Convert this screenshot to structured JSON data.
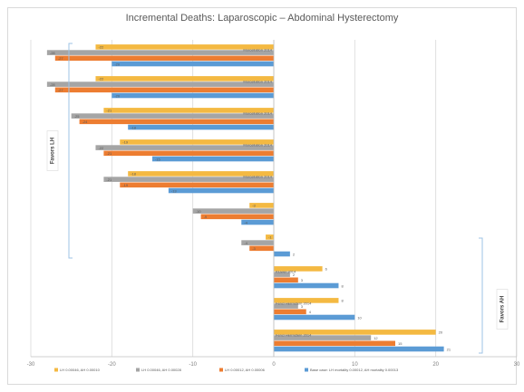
{
  "chart_data": {
    "type": "bar",
    "orientation": "horizontal",
    "title": "Incremental Deaths: Laparoscopic – Abdominal Hysterectomy",
    "xlim": [
      -30,
      30
    ],
    "xticks": [
      -30,
      -20,
      -10,
      0,
      10,
      20,
      30
    ],
    "xtick_labels": [
      "-30",
      "-20",
      "-10",
      "0",
      "10",
      "20",
      "30"
    ],
    "grid": true,
    "legend_position": "bottom",
    "categories": [
      "Morcellation 2014",
      "Morcellation 2014",
      "Morcellation 2014",
      "Morcellation 2014",
      "Morcellation 2014",
      "",
      "",
      "Kluwer 2014",
      "Fencl Herrnstein 2014",
      "Fencl Herrnstein 2014"
    ],
    "series": [
      {
        "name": "LH 0.00046, AH 0.00010",
        "color": "#f4b942",
        "values": [
          -22,
          -22,
          -21,
          -19,
          -18,
          -3,
          -1,
          6,
          8,
          20
        ]
      },
      {
        "name": "LH 0.00046, AH 0.00028",
        "color": "#a5a5a5",
        "values": [
          -28,
          -28,
          -25,
          -22,
          -21,
          -10,
          -4,
          2,
          3,
          12
        ]
      },
      {
        "name": "LH 0.00012, AH 0.00006",
        "color": "#ed7d31",
        "values": [
          -27,
          -27,
          -24,
          -21,
          -19,
          -9,
          -3,
          3,
          4,
          15
        ]
      },
      {
        "name": "Base case: LH mortality 0.00012, AH mortality 0.00013",
        "color": "#5b9bd5",
        "values": [
          -20,
          -20,
          -18,
          -15,
          -13,
          -4,
          2,
          8,
          10,
          21
        ]
      }
    ],
    "data_labels": [
      [
        "-22",
        "-22",
        "-21",
        "-19",
        "-18",
        "-3",
        "-1",
        "6",
        "8",
        "20"
      ],
      [
        "-28",
        "-28",
        "-25",
        "-22",
        "-21",
        "-10",
        "-4",
        "2",
        "3",
        "12"
      ],
      [
        "-27",
        "-27",
        "-24",
        "-21",
        "-19",
        "-9",
        "-3",
        "3",
        "4",
        "15"
      ],
      [
        "-20",
        "-20",
        "-18",
        "-15",
        "-13",
        "-4",
        "2",
        "8",
        "10",
        "21"
      ]
    ],
    "groups": [
      {
        "label": "Favors LH",
        "from": 0,
        "to": 6,
        "side": "left"
      },
      {
        "label": "Favors AH",
        "from": 7,
        "to": 9,
        "side": "right"
      }
    ]
  }
}
